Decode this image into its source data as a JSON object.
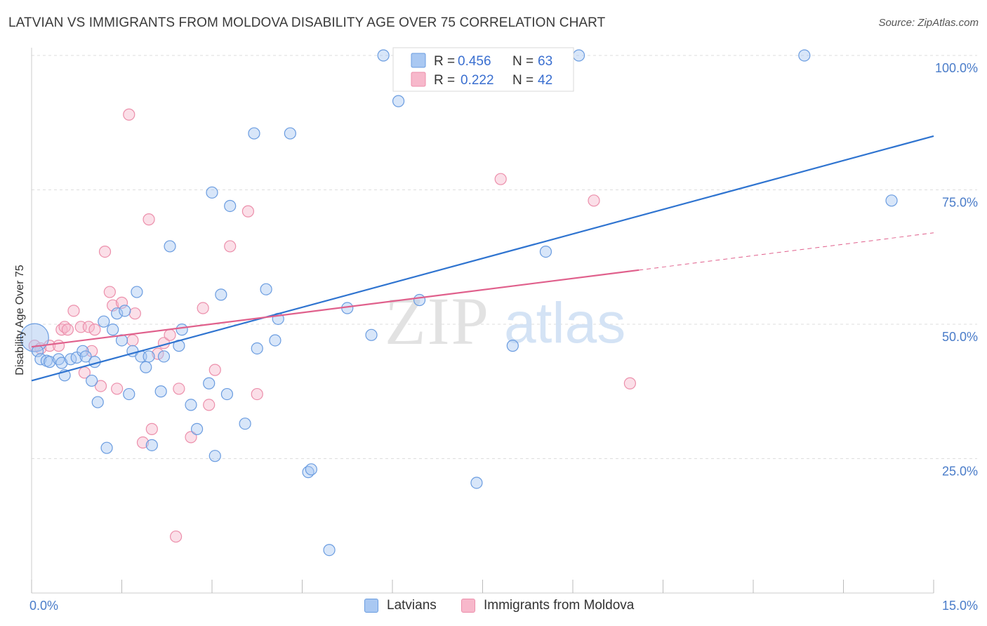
{
  "title": "LATVIAN VS IMMIGRANTS FROM MOLDOVA DISABILITY AGE OVER 75 CORRELATION CHART",
  "source": "Source: ZipAtlas.com",
  "watermark": {
    "zip": "ZIP",
    "atlas": "atlas"
  },
  "legend_top": {
    "r_label": "R =",
    "n_label": "N =",
    "items": [
      {
        "r": "0.456",
        "n": "63"
      },
      {
        "r": "0.222",
        "n": "42"
      }
    ]
  },
  "bottom_legend": [
    "Latvians",
    "Immigrants from Moldova"
  ],
  "colors": {
    "blue_fill": "#a9c8f2",
    "blue_stroke": "#6a9ce0",
    "blue_line": "#2f74d0",
    "pink_fill": "#f7b8cb",
    "pink_stroke": "#ec8fab",
    "pink_line": "#e0608c",
    "grid": "#dddddd",
    "axis_label": "#4a7cc9"
  },
  "chart_data": {
    "type": "scatter",
    "title": "LATVIAN VS IMMIGRANTS FROM MOLDOVA DISABILITY AGE OVER 75 CORRELATION CHART",
    "xlabel": "",
    "ylabel": "Disability Age Over 75",
    "xlim": [
      0,
      15
    ],
    "ylim": [
      0,
      102
    ],
    "x_tick_labels": [
      "0.0%",
      "15.0%"
    ],
    "y_tick_labels": [
      "25.0%",
      "50.0%",
      "75.0%",
      "100.0%"
    ],
    "y_ticks": [
      25,
      50,
      75,
      100
    ],
    "grid": true,
    "legend_position": "top-center",
    "series": [
      {
        "name": "Latvians",
        "color": "#a9c8f2",
        "trend": {
          "x0": 0,
          "y0": 39.5,
          "x1": 15,
          "y1": 85,
          "solid_until": 15
        },
        "points": [
          {
            "x": 0.05,
            "y": 47.5,
            "big": true
          },
          {
            "x": 0.1,
            "y": 45
          },
          {
            "x": 0.15,
            "y": 43.5
          },
          {
            "x": 0.25,
            "y": 43.2
          },
          {
            "x": 0.3,
            "y": 43
          },
          {
            "x": 0.45,
            "y": 43.5
          },
          {
            "x": 0.5,
            "y": 42.8
          },
          {
            "x": 0.55,
            "y": 40.5
          },
          {
            "x": 0.65,
            "y": 43.5
          },
          {
            "x": 0.75,
            "y": 43.8
          },
          {
            "x": 0.85,
            "y": 45
          },
          {
            "x": 0.9,
            "y": 44
          },
          {
            "x": 1.0,
            "y": 39.5
          },
          {
            "x": 1.05,
            "y": 43
          },
          {
            "x": 1.1,
            "y": 35.5
          },
          {
            "x": 1.2,
            "y": 50.5
          },
          {
            "x": 1.25,
            "y": 27
          },
          {
            "x": 1.35,
            "y": 49
          },
          {
            "x": 1.42,
            "y": 52
          },
          {
            "x": 1.5,
            "y": 47
          },
          {
            "x": 1.55,
            "y": 52.5
          },
          {
            "x": 1.62,
            "y": 37
          },
          {
            "x": 1.68,
            "y": 45
          },
          {
            "x": 1.75,
            "y": 56
          },
          {
            "x": 1.82,
            "y": 44
          },
          {
            "x": 1.9,
            "y": 42
          },
          {
            "x": 1.95,
            "y": 44
          },
          {
            "x": 2.0,
            "y": 27.5
          },
          {
            "x": 2.15,
            "y": 37.5
          },
          {
            "x": 2.2,
            "y": 44
          },
          {
            "x": 2.3,
            "y": 64.5
          },
          {
            "x": 2.45,
            "y": 46
          },
          {
            "x": 2.5,
            "y": 49
          },
          {
            "x": 2.65,
            "y": 35
          },
          {
            "x": 2.75,
            "y": 30.5
          },
          {
            "x": 2.95,
            "y": 39
          },
          {
            "x": 3.0,
            "y": 74.5
          },
          {
            "x": 3.05,
            "y": 25.5
          },
          {
            "x": 3.15,
            "y": 55.5
          },
          {
            "x": 3.25,
            "y": 37
          },
          {
            "x": 3.3,
            "y": 72
          },
          {
            "x": 3.55,
            "y": 31.5
          },
          {
            "x": 3.7,
            "y": 85.5
          },
          {
            "x": 3.75,
            "y": 45.5
          },
          {
            "x": 3.9,
            "y": 56.5
          },
          {
            "x": 4.05,
            "y": 47
          },
          {
            "x": 4.1,
            "y": 51
          },
          {
            "x": 4.3,
            "y": 85.5
          },
          {
            "x": 4.6,
            "y": 22.5
          },
          {
            "x": 4.65,
            "y": 23
          },
          {
            "x": 4.95,
            "y": 8
          },
          {
            "x": 5.25,
            "y": 53
          },
          {
            "x": 5.65,
            "y": 48
          },
          {
            "x": 5.85,
            "y": 100
          },
          {
            "x": 6.1,
            "y": 91.5
          },
          {
            "x": 6.45,
            "y": 54.5
          },
          {
            "x": 7.4,
            "y": 20.5
          },
          {
            "x": 8.0,
            "y": 46
          },
          {
            "x": 8.55,
            "y": 63.5
          },
          {
            "x": 9.1,
            "y": 100
          },
          {
            "x": 12.85,
            "y": 100
          },
          {
            "x": 14.3,
            "y": 73
          }
        ]
      },
      {
        "name": "Immigrants from Moldova",
        "color": "#f7b8cb",
        "trend": {
          "x0": 0,
          "y0": 45.8,
          "x1": 15,
          "y1": 67,
          "solid_until": 10.1
        },
        "points": [
          {
            "x": 0.05,
            "y": 46
          },
          {
            "x": 0.15,
            "y": 45.5
          },
          {
            "x": 0.3,
            "y": 46
          },
          {
            "x": 0.45,
            "y": 46
          },
          {
            "x": 0.5,
            "y": 49
          },
          {
            "x": 0.55,
            "y": 49.5
          },
          {
            "x": 0.6,
            "y": 49
          },
          {
            "x": 0.7,
            "y": 52.5
          },
          {
            "x": 0.82,
            "y": 49.5
          },
          {
            "x": 0.88,
            "y": 41
          },
          {
            "x": 0.95,
            "y": 49.5
          },
          {
            "x": 1.0,
            "y": 45
          },
          {
            "x": 1.05,
            "y": 49
          },
          {
            "x": 1.15,
            "y": 38.5
          },
          {
            "x": 1.22,
            "y": 63.5
          },
          {
            "x": 1.3,
            "y": 56
          },
          {
            "x": 1.35,
            "y": 53.5
          },
          {
            "x": 1.42,
            "y": 38
          },
          {
            "x": 1.5,
            "y": 54
          },
          {
            "x": 1.62,
            "y": 89
          },
          {
            "x": 1.68,
            "y": 47
          },
          {
            "x": 1.72,
            "y": 52
          },
          {
            "x": 1.85,
            "y": 28
          },
          {
            "x": 1.95,
            "y": 69.5
          },
          {
            "x": 2.0,
            "y": 30.5
          },
          {
            "x": 2.1,
            "y": 44.5
          },
          {
            "x": 2.2,
            "y": 46.5
          },
          {
            "x": 2.3,
            "y": 48
          },
          {
            "x": 2.4,
            "y": 10.5
          },
          {
            "x": 2.45,
            "y": 38
          },
          {
            "x": 2.65,
            "y": 29
          },
          {
            "x": 2.85,
            "y": 53
          },
          {
            "x": 2.95,
            "y": 35
          },
          {
            "x": 3.05,
            "y": 41.5
          },
          {
            "x": 3.3,
            "y": 64.5
          },
          {
            "x": 3.6,
            "y": 71
          },
          {
            "x": 3.75,
            "y": 37
          },
          {
            "x": 7.8,
            "y": 77
          },
          {
            "x": 9.35,
            "y": 73
          },
          {
            "x": 9.95,
            "y": 39
          }
        ]
      }
    ]
  }
}
